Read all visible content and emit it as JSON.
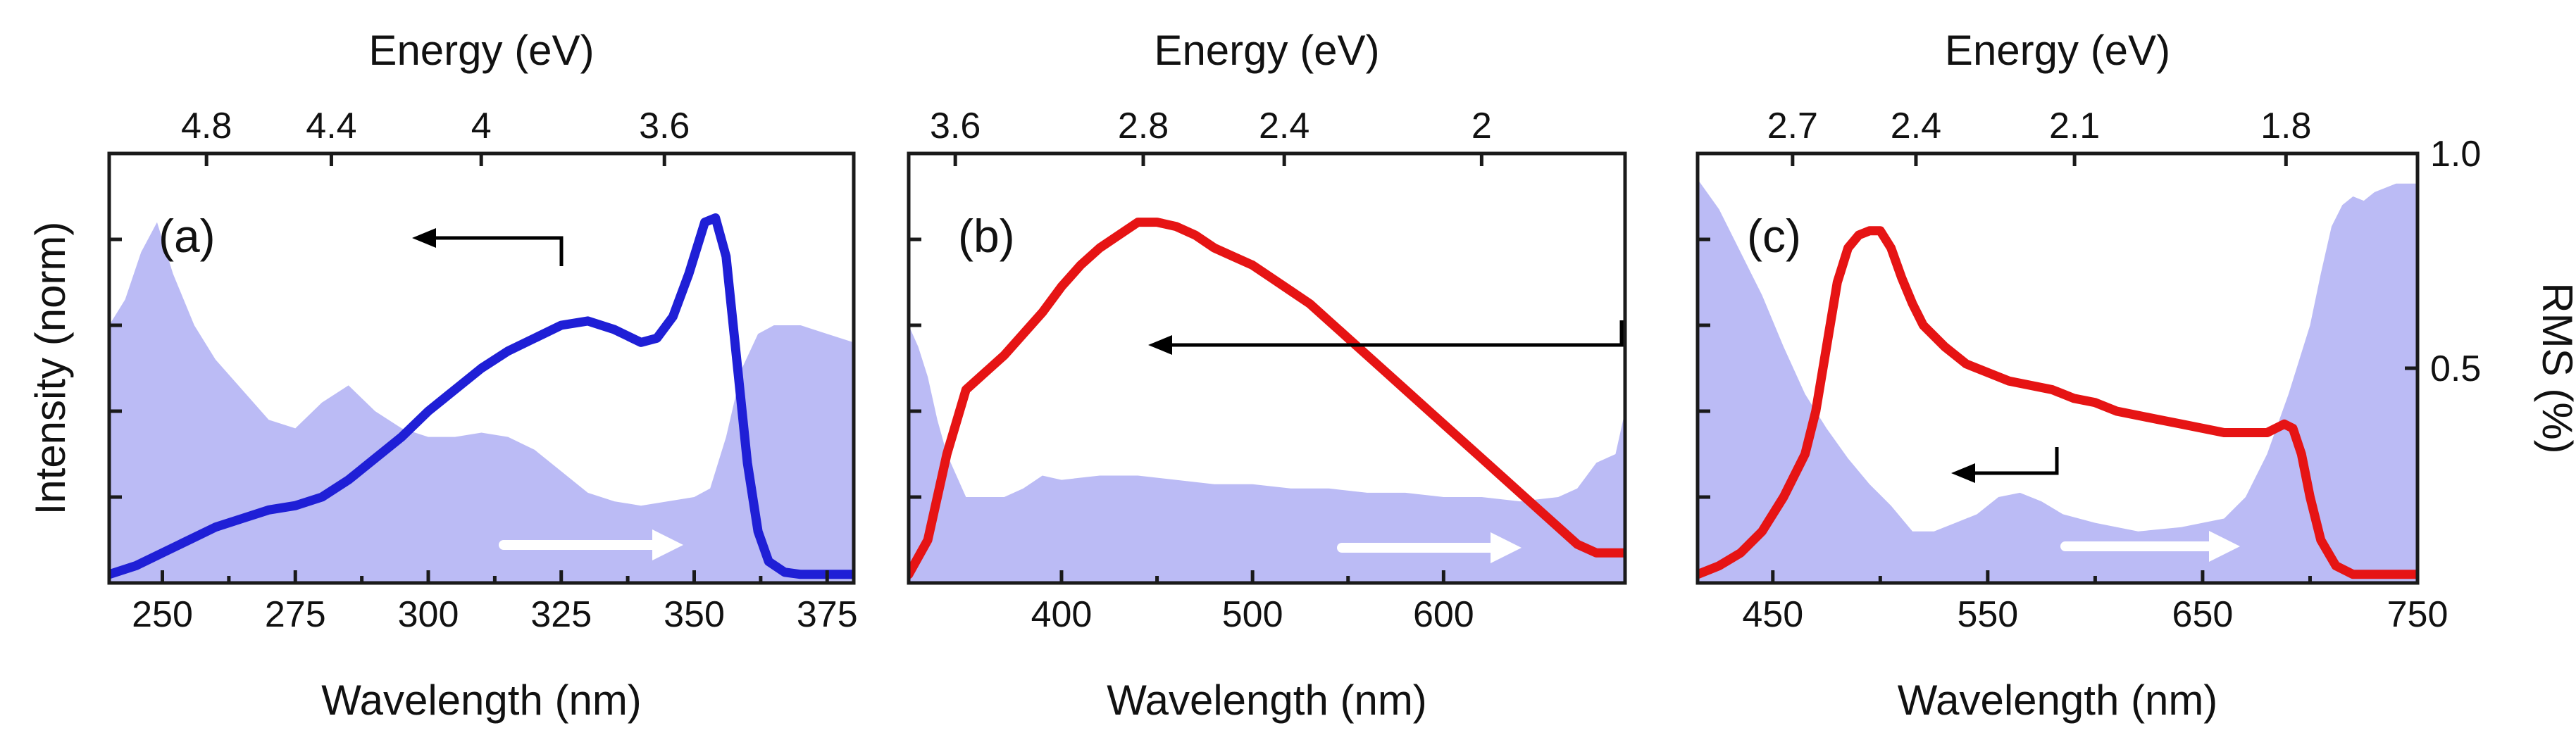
{
  "chart_data": [
    {
      "type": "line",
      "panel_label": "(a)",
      "title": "",
      "xlabel": "Wavelength (nm)",
      "top_xlabel": "Energy (eV)",
      "ylabel": "Intensity (norm)",
      "xlim": [
        240,
        380
      ],
      "xticks": [
        250,
        275,
        300,
        325,
        350,
        375
      ],
      "top_ticks": [
        4.8,
        4.4,
        4,
        3.6
      ],
      "ylim": [
        0,
        1
      ],
      "series": [
        {
          "name": "Intensity",
          "color": "#1f1fd6",
          "x": [
            240,
            245,
            250,
            255,
            260,
            265,
            270,
            275,
            280,
            285,
            290,
            295,
            300,
            305,
            310,
            315,
            320,
            325,
            330,
            335,
            340,
            343,
            346,
            349,
            352,
            354,
            356,
            358,
            360,
            362,
            364,
            367,
            370,
            375,
            380
          ],
          "y": [
            0.02,
            0.04,
            0.07,
            0.1,
            0.13,
            0.15,
            0.17,
            0.18,
            0.2,
            0.24,
            0.29,
            0.34,
            0.4,
            0.45,
            0.5,
            0.54,
            0.57,
            0.6,
            0.61,
            0.59,
            0.56,
            0.57,
            0.62,
            0.72,
            0.84,
            0.85,
            0.76,
            0.52,
            0.28,
            0.12,
            0.05,
            0.025,
            0.02,
            0.02,
            0.02
          ]
        },
        {
          "name": "RMS (%)",
          "color": "#bbbbf5",
          "x": [
            240,
            243,
            246,
            249,
            252,
            256,
            260,
            265,
            270,
            275,
            280,
            285,
            290,
            295,
            300,
            305,
            310,
            315,
            320,
            325,
            330,
            335,
            340,
            345,
            350,
            353,
            356,
            359,
            362,
            365,
            370,
            375,
            380
          ],
          "y": [
            0.6,
            0.66,
            0.77,
            0.84,
            0.72,
            0.6,
            0.52,
            0.45,
            0.38,
            0.36,
            0.42,
            0.46,
            0.4,
            0.36,
            0.34,
            0.34,
            0.35,
            0.34,
            0.31,
            0.26,
            0.21,
            0.19,
            0.18,
            0.19,
            0.2,
            0.22,
            0.34,
            0.5,
            0.58,
            0.6,
            0.6,
            0.58,
            0.56
          ]
        }
      ],
      "annotations": [
        "arrow pointing left (intensity axis)",
        "white arrow pointing right (RMS axis)"
      ]
    },
    {
      "type": "line",
      "panel_label": "(b)",
      "title": "",
      "xlabel": "Wavelength (nm)",
      "top_xlabel": "Energy (eV)",
      "xlim": [
        320,
        695
      ],
      "xticks": [
        400,
        500,
        600
      ],
      "top_ticks": [
        3.6,
        2.8,
        2.4,
        2
      ],
      "ylim": [
        0,
        1
      ],
      "series": [
        {
          "name": "Intensity",
          "color": "#e61414",
          "x": [
            320,
            330,
            340,
            350,
            360,
            370,
            380,
            390,
            400,
            410,
            420,
            430,
            440,
            450,
            460,
            470,
            480,
            490,
            500,
            510,
            520,
            530,
            540,
            550,
            560,
            570,
            580,
            590,
            600,
            610,
            620,
            630,
            640,
            650,
            660,
            670,
            680,
            695
          ],
          "y": [
            0.02,
            0.1,
            0.3,
            0.45,
            0.49,
            0.53,
            0.58,
            0.63,
            0.69,
            0.74,
            0.78,
            0.81,
            0.84,
            0.84,
            0.83,
            0.81,
            0.78,
            0.76,
            0.74,
            0.71,
            0.68,
            0.65,
            0.61,
            0.57,
            0.53,
            0.49,
            0.45,
            0.41,
            0.37,
            0.33,
            0.29,
            0.25,
            0.21,
            0.17,
            0.13,
            0.09,
            0.07,
            0.07
          ]
        },
        {
          "name": "RMS (%)",
          "color": "#bbbbf5",
          "x": [
            320,
            325,
            330,
            335,
            340,
            345,
            350,
            360,
            370,
            380,
            390,
            400,
            420,
            440,
            460,
            480,
            500,
            520,
            540,
            560,
            580,
            600,
            620,
            640,
            660,
            670,
            680,
            690,
            695
          ],
          "y": [
            0.6,
            0.55,
            0.48,
            0.38,
            0.3,
            0.25,
            0.2,
            0.2,
            0.2,
            0.22,
            0.25,
            0.24,
            0.25,
            0.25,
            0.24,
            0.23,
            0.23,
            0.22,
            0.22,
            0.21,
            0.21,
            0.2,
            0.2,
            0.19,
            0.2,
            0.22,
            0.28,
            0.3,
            0.4
          ]
        }
      ],
      "annotations": [
        "arrow pointing left (intensity axis)",
        "white arrow pointing right (RMS axis)"
      ]
    },
    {
      "type": "line",
      "panel_label": "(c)",
      "title": "",
      "xlabel": "Wavelength (nm)",
      "top_xlabel": "Energy (eV)",
      "right_ylabel": "RMS (%)",
      "right_yticks": [
        0.5,
        1.0
      ],
      "right_ytick_labels": [
        "0.5",
        "1.0"
      ],
      "xlim": [
        415,
        750
      ],
      "xticks": [
        450,
        550,
        650,
        750
      ],
      "top_ticks": [
        2.7,
        2.4,
        2.1,
        1.8
      ],
      "ylim": [
        0,
        1
      ],
      "series": [
        {
          "name": "Intensity",
          "color": "#e61414",
          "x": [
            415,
            425,
            435,
            445,
            455,
            465,
            470,
            475,
            480,
            485,
            490,
            495,
            500,
            505,
            510,
            515,
            520,
            530,
            540,
            550,
            560,
            570,
            580,
            590,
            600,
            610,
            620,
            630,
            640,
            650,
            660,
            670,
            680,
            688,
            692,
            696,
            700,
            705,
            712,
            720,
            730,
            750
          ],
          "y": [
            0.02,
            0.04,
            0.07,
            0.12,
            0.2,
            0.3,
            0.4,
            0.55,
            0.7,
            0.78,
            0.81,
            0.82,
            0.82,
            0.78,
            0.71,
            0.65,
            0.6,
            0.55,
            0.51,
            0.49,
            0.47,
            0.46,
            0.45,
            0.43,
            0.42,
            0.4,
            0.39,
            0.38,
            0.37,
            0.36,
            0.35,
            0.35,
            0.35,
            0.37,
            0.36,
            0.3,
            0.2,
            0.1,
            0.04,
            0.02,
            0.02,
            0.02
          ]
        },
        {
          "name": "RMS (%)",
          "color": "#bbbbf5",
          "x": [
            415,
            425,
            435,
            445,
            455,
            465,
            475,
            485,
            495,
            505,
            515,
            525,
            535,
            545,
            555,
            565,
            575,
            585,
            600,
            620,
            640,
            660,
            670,
            680,
            690,
            700,
            705,
            710,
            715,
            720,
            725,
            730,
            740,
            750
          ],
          "y": [
            0.94,
            0.87,
            0.77,
            0.67,
            0.55,
            0.44,
            0.36,
            0.29,
            0.23,
            0.18,
            0.12,
            0.12,
            0.14,
            0.16,
            0.2,
            0.21,
            0.19,
            0.16,
            0.14,
            0.12,
            0.13,
            0.15,
            0.2,
            0.3,
            0.44,
            0.6,
            0.72,
            0.83,
            0.88,
            0.9,
            0.89,
            0.91,
            0.93,
            0.93
          ]
        }
      ],
      "annotations": [
        "arrow pointing left (intensity axis)",
        "white arrow pointing right (RMS axis)"
      ]
    }
  ]
}
